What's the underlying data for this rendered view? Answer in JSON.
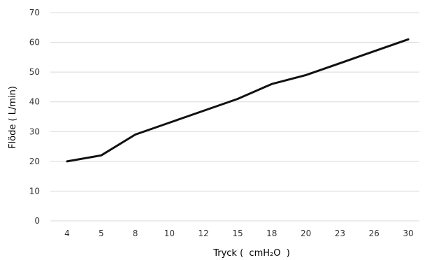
{
  "chart_data": {
    "type": "line",
    "title": "",
    "xlabel": "Tryck (  cmH₂O  )",
    "ylabel": "Flöde ( L/min)",
    "categories": [
      "4",
      "5",
      "8",
      "10",
      "12",
      "15",
      "18",
      "20",
      "23",
      "26",
      "30"
    ],
    "series": [
      {
        "values": [
          20,
          22,
          29,
          33,
          37,
          41,
          46,
          49,
          53,
          57,
          61
        ],
        "color": "#111111"
      }
    ],
    "ylim": [
      0,
      70
    ],
    "yticks": [
      0,
      10,
      20,
      30,
      40,
      50,
      60,
      70
    ],
    "grid": true,
    "legend": "none"
  }
}
